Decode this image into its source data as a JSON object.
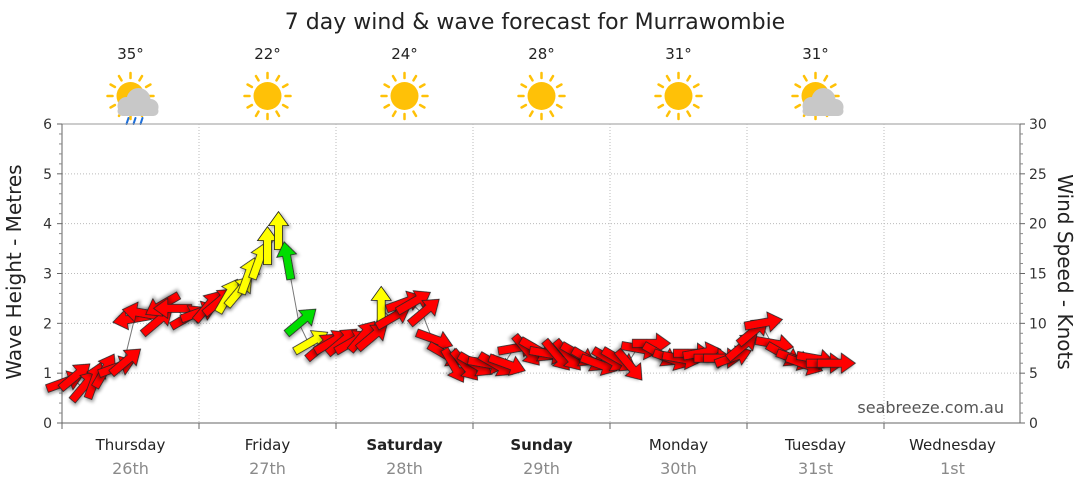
{
  "title": "7 day wind & wave forecast for Murrawombie",
  "credit": "seabreeze.com.au",
  "colors": {
    "red": "#ff0000",
    "yellow": "#ffff00",
    "green": "#00dd00",
    "sun": "#ffc107",
    "cloud": "#c8c8c8",
    "rain": "#1e6fd9"
  },
  "days": [
    {
      "name": "Thursday",
      "date": "26th",
      "temp": "35°",
      "icon": "sun-cloud-rain-icon",
      "bold": false
    },
    {
      "name": "Friday",
      "date": "27th",
      "temp": "22°",
      "icon": "sun-icon",
      "bold": false
    },
    {
      "name": "Saturday",
      "date": "28th",
      "temp": "24°",
      "icon": "sun-icon",
      "bold": true
    },
    {
      "name": "Sunday",
      "date": "29th",
      "temp": "28°",
      "icon": "sun-icon",
      "bold": true
    },
    {
      "name": "Monday",
      "date": "30th",
      "temp": "31°",
      "icon": "sun-icon",
      "bold": false
    },
    {
      "name": "Tuesday",
      "date": "31st",
      "temp": "31°",
      "icon": "sun-cloud-icon",
      "bold": false
    },
    {
      "name": "Wednesday",
      "date": "1st",
      "temp": "",
      "icon": "",
      "bold": false
    }
  ],
  "chart_data": {
    "type": "line",
    "title": "7 day wind & wave forecast for Murrawombie",
    "ylabel_left": "Wave Height - Metres",
    "ylabel_right": "Wind Speed - Knots",
    "ylim_left": [
      0,
      6
    ],
    "ylim_right": [
      0,
      30
    ],
    "left_ticks": [
      "0",
      "1",
      "2",
      "3",
      "4",
      "5",
      "6"
    ],
    "right_ticks": [
      "0",
      "5",
      "10",
      "15",
      "20",
      "25",
      "30"
    ],
    "x_categories": [
      "Thursday 26th",
      "Friday 27th",
      "Saturday 28th",
      "Sunday 29th",
      "Monday 30th",
      "Tuesday 31st",
      "Wednesday 1st"
    ],
    "grid": true,
    "series": [
      {
        "unit": "knots",
        "day_offset": [
          0,
          0.08,
          0.15,
          0.23,
          0.3,
          0.38,
          0.45,
          0.53,
          0.6,
          0.68,
          0.75,
          0.83,
          0.9,
          0.98,
          1.05,
          1.13,
          1.2,
          1.28,
          1.35,
          1.43,
          1.5,
          1.58,
          1.65,
          1.73,
          1.8,
          1.88,
          1.95,
          2.03,
          2.1,
          2.18,
          2.25,
          2.33,
          2.4,
          2.48,
          2.55,
          2.63,
          2.7,
          2.78,
          2.85,
          2.93,
          3.0,
          3.08,
          3.15,
          3.23,
          3.3,
          3.38,
          3.45,
          3.53,
          3.6,
          3.68,
          3.75,
          3.83,
          3.9,
          3.98,
          4.05,
          4.13,
          4.2,
          4.28,
          4.35,
          4.43,
          4.5,
          4.58,
          4.65,
          4.73,
          4.8,
          4.88,
          4.95,
          5.03,
          5.1,
          5.18,
          5.25,
          5.33,
          5.4,
          5.48,
          5.55,
          5.63
        ],
        "wind_knots": [
          4,
          4.5,
          3.5,
          4,
          5,
          5.5,
          6,
          10.5,
          11,
          10,
          12,
          11.5,
          10.5,
          11,
          11.5,
          12,
          12.5,
          13,
          14.5,
          16,
          17.5,
          19,
          16,
          10,
          8,
          7.5,
          8,
          8,
          8,
          8.5,
          8.5,
          11.5,
          10.5,
          12,
          12,
          11,
          8.5,
          7,
          6,
          6,
          6,
          6,
          6,
          6,
          7.5,
          7.5,
          7.5,
          7,
          7,
          7,
          7,
          6.5,
          6,
          6.5,
          6.5,
          6,
          7.5,
          8,
          7,
          6.5,
          6.5,
          7,
          7,
          6.5,
          6.5,
          6.5,
          7.5,
          9,
          10,
          8,
          7,
          6.5,
          6,
          6.5,
          6,
          6
        ],
        "direction_deg": [
          250,
          230,
          220,
          200,
          210,
          250,
          230,
          80,
          100,
          230,
          60,
          90,
          240,
          250,
          220,
          230,
          210,
          220,
          200,
          200,
          180,
          180,
          170,
          230,
          240,
          230,
          240,
          230,
          240,
          220,
          230,
          180,
          240,
          250,
          240,
          230,
          290,
          300,
          330,
          320,
          300,
          280,
          300,
          290,
          260,
          320,
          300,
          280,
          320,
          320,
          300,
          300,
          290,
          300,
          300,
          320,
          280,
          270,
          300,
          290,
          280,
          270,
          260,
          270,
          270,
          250,
          230,
          230,
          260,
          280,
          300,
          290,
          290,
          280,
          270,
          270
        ],
        "strength": [
          "red",
          "red",
          "red",
          "red",
          "red",
          "red",
          "red",
          "red",
          "red",
          "red",
          "red",
          "red",
          "red",
          "red",
          "red",
          "red",
          "yellow",
          "yellow",
          "yellow",
          "yellow",
          "yellow",
          "yellow",
          "green",
          "green",
          "yellow",
          "red",
          "red",
          "red",
          "red",
          "red",
          "red",
          "yellow",
          "red",
          "red",
          "red",
          "red",
          "red",
          "red",
          "red",
          "red",
          "red",
          "red",
          "red",
          "red",
          "red",
          "red",
          "red",
          "red",
          "red",
          "red",
          "red",
          "red",
          "red",
          "red",
          "red",
          "red",
          "red",
          "red",
          "red",
          "red",
          "red",
          "red",
          "red",
          "red",
          "red",
          "red",
          "red",
          "red",
          "red",
          "red",
          "red",
          "red",
          "red",
          "red",
          "red",
          "red"
        ]
      }
    ]
  }
}
